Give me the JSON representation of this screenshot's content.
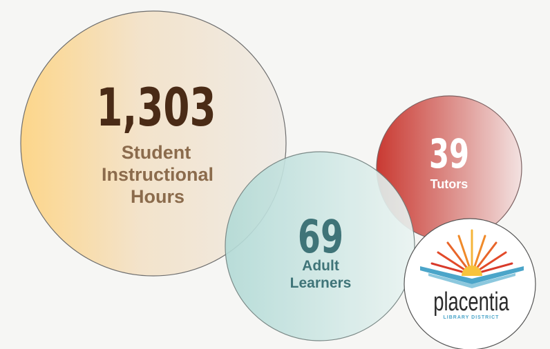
{
  "stats": [
    {
      "value": "1,303",
      "label": [
        "Student",
        "Instructional",
        "Hours"
      ]
    },
    {
      "value": "69",
      "label": [
        "Adult",
        "Learners"
      ]
    },
    {
      "value": "39",
      "label": [
        "Tutors"
      ]
    }
  ],
  "logo": {
    "name": "placentia",
    "subtitle": "LIBRARY DISTRICT"
  }
}
